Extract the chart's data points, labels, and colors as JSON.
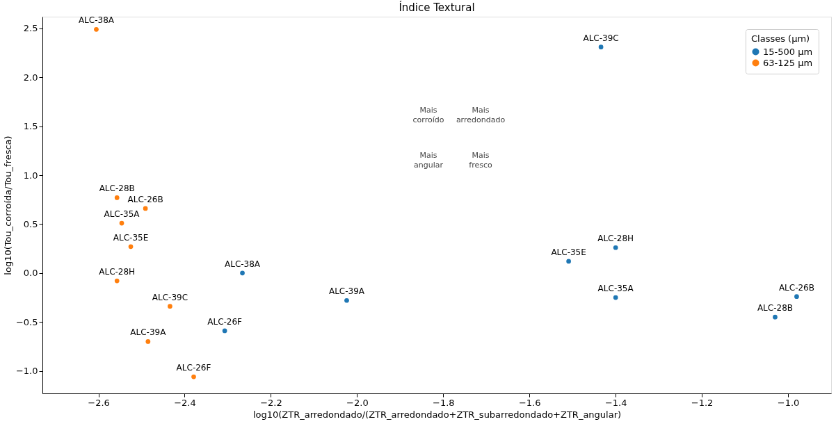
{
  "chart_data": {
    "type": "scatter",
    "title": "Índice Textural",
    "xlabel": "log10(ZTR_arredondado/(ZTR_arredondado+ZTR_subarredondado+ZTR_angular)",
    "ylabel": "log10(Tou_corroída/Tou_fresca)",
    "legend_title": "Classes (µm)",
    "legend": "top right",
    "marker": "circle",
    "grid": false,
    "xlim": [
      -2.73,
      -0.9
    ],
    "xticks": [
      -2.6,
      -2.4,
      -2.2,
      {
        "value": -2.0,
        "label": "−2.0"
      },
      -1.8,
      -1.6,
      -1.4,
      -1.2,
      {
        "value": -1.0,
        "label": "−1.0"
      }
    ],
    "ylim": [
      -1.23,
      2.62
    ],
    "yticks": [
      {
        "value": -1.0,
        "label": "−1.0"
      },
      -0.5,
      {
        "value": 0.0,
        "label": "0.0"
      },
      0.5,
      {
        "value": 1.0,
        "label": "1.0"
      },
      1.5,
      {
        "value": 2.0,
        "label": "2.0"
      },
      2.5
    ],
    "series": [
      {
        "name": "15-500 µm",
        "color": "#1f77b4",
        "x": [
          -1.434,
          -2.266,
          -2.024,
          -2.307,
          -1.509,
          -1.4,
          -1.4,
          -0.98,
          -1.03
        ],
        "values": [
          2.31,
          0.0,
          -0.28,
          -0.59,
          0.12,
          0.26,
          -0.25,
          -0.24,
          -0.45
        ],
        "value_labels": [
          "ALC-39C",
          "ALC-38A",
          "ALC-39A",
          "ALC-26F",
          "ALC-35E",
          "ALC-28H",
          "ALC-35A",
          "ALC-26B",
          "ALC-28B"
        ]
      },
      {
        "name": "63-125 µm",
        "color": "#ff7f0e",
        "x": [
          -2.605,
          -2.557,
          -2.491,
          -2.546,
          -2.525,
          -2.557,
          -2.434,
          -2.485,
          -2.379
        ],
        "values": [
          2.49,
          0.77,
          0.66,
          0.51,
          0.27,
          -0.08,
          -0.34,
          -0.7,
          -1.06
        ],
        "value_labels": [
          "ALC-38A",
          "ALC-28B",
          "ALC-26B",
          "ALC-35A",
          "ALC-35E",
          "ALC-28H",
          "ALC-39C",
          "ALC-39A",
          "ALC-26F"
        ]
      }
    ],
    "annotations": [
      "Mais\ncorroído",
      "Mais\narredondado",
      "Mais\nangular",
      "Mais\nfresco"
    ]
  }
}
